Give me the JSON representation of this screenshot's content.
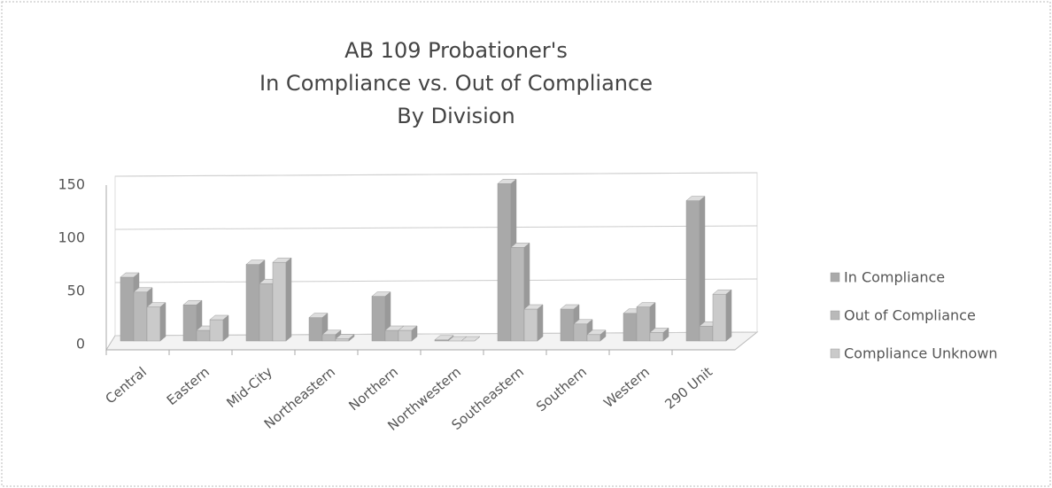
{
  "chart_data": {
    "type": "bar",
    "title": [
      "AB 109 Probationer's",
      "In Compliance vs. Out of Compliance",
      "By Division"
    ],
    "categories": [
      "Central",
      "Eastern",
      "Mid-City",
      "Northeastern",
      "Northern",
      "Northwestern",
      "Southeastern",
      "Southern",
      "Western",
      "290 Unit"
    ],
    "series": [
      {
        "name": "In Compliance",
        "color": "#a9a9a9",
        "values": [
          60,
          34,
          72,
          22,
          42,
          1,
          148,
          30,
          26,
          132
        ]
      },
      {
        "name": "Out of Compliance",
        "color": "#b9b9b9",
        "values": [
          46,
          10,
          54,
          6,
          10,
          0,
          88,
          16,
          32,
          14
        ]
      },
      {
        "name": "Compliance Unknown",
        "color": "#cacaca",
        "values": [
          32,
          20,
          74,
          2,
          10,
          0,
          30,
          6,
          8,
          44
        ]
      }
    ],
    "ylim": [
      0,
      150
    ],
    "yticks": [
      0,
      50,
      100,
      150
    ],
    "grid": true,
    "legend": "right"
  }
}
